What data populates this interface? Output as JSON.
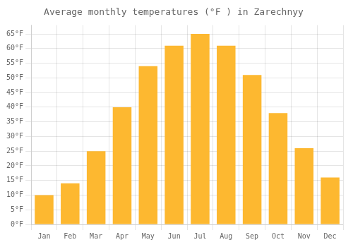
{
  "chart_data": {
    "type": "bar",
    "title": "Average monthly temperatures (°F ) in Zarechnyy",
    "categories": [
      "Jan",
      "Feb",
      "Mar",
      "Apr",
      "May",
      "Jun",
      "Jul",
      "Aug",
      "Sep",
      "Oct",
      "Nov",
      "Dec"
    ],
    "values": [
      10,
      14,
      25,
      40,
      54,
      61,
      65,
      61,
      51,
      38,
      26,
      16
    ],
    "color": "#FDB830",
    "ylim": [
      0,
      68
    ],
    "yticks": [
      {
        "value": 0,
        "label": "0°F"
      },
      {
        "value": 5,
        "label": "5°F"
      },
      {
        "value": 10,
        "label": "10°F"
      },
      {
        "value": 15,
        "label": "15°F"
      },
      {
        "value": 20,
        "label": "20°F"
      },
      {
        "value": 25,
        "label": "25°F"
      },
      {
        "value": 30,
        "label": "30°F"
      },
      {
        "value": 35,
        "label": "35°F"
      },
      {
        "value": 40,
        "label": "40°F"
      },
      {
        "value": 45,
        "label": "45°F"
      },
      {
        "value": 50,
        "label": "50°F"
      },
      {
        "value": 55,
        "label": "55°F"
      },
      {
        "value": 60,
        "label": "60°F"
      },
      {
        "value": 65,
        "label": "65°F"
      }
    ],
    "grid": true
  }
}
